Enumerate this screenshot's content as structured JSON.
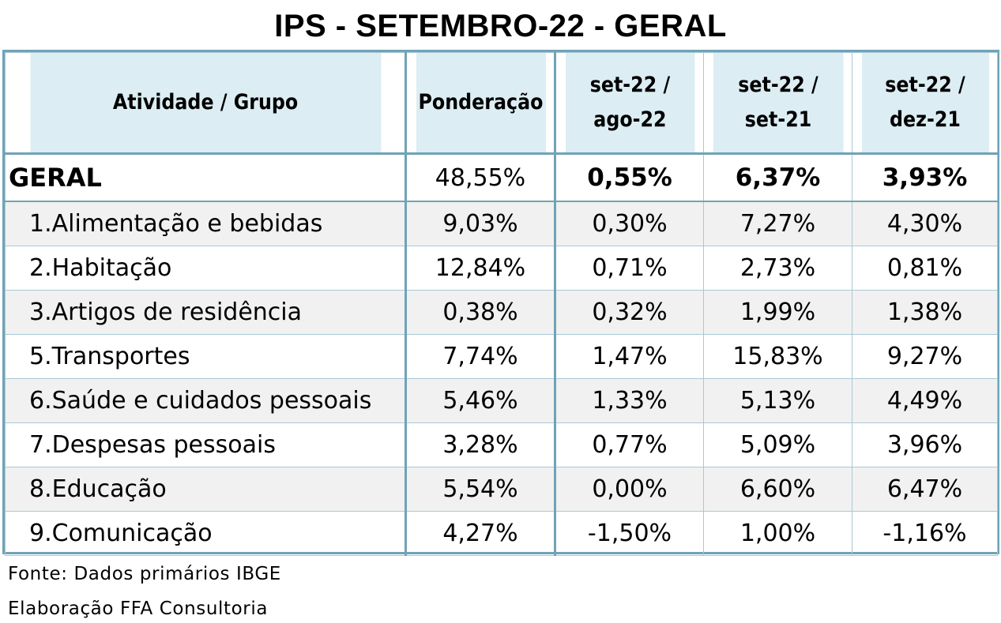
{
  "title": "IPS - SETEMBRO-22 - GERAL",
  "headers": [
    "Atividade / Grupo",
    "Ponderação",
    "set-22  /\nago-22",
    "set-22  /\nset-21",
    "set-22  /\ndez-21"
  ],
  "header_lines": [
    [
      "Atividade / Grupo"
    ],
    [
      "Ponderação"
    ],
    [
      "set-22  /",
      "ago-22"
    ],
    [
      "set-22  /",
      "set-21"
    ],
    [
      "set-22  /",
      "dez-21"
    ]
  ],
  "chart_data": {
    "type": "table",
    "title": "IPS - SETEMBRO-22 - GERAL",
    "columns": [
      "Atividade / Grupo",
      "Ponderação",
      "set-22 / ago-22",
      "set-22 / set-21",
      "set-22 / dez-21"
    ],
    "rows": [
      [
        "GERAL",
        "48,55%",
        "0,55%",
        "6,37%",
        "3,93%"
      ],
      [
        "1.Alimentação e bebidas",
        "9,03%",
        "0,30%",
        "7,27%",
        "4,30%"
      ],
      [
        "2.Habitação",
        "12,84%",
        "0,71%",
        "2,73%",
        "0,81%"
      ],
      [
        "3.Artigos de residência",
        "0,38%",
        "0,32%",
        "1,99%",
        "1,38%"
      ],
      [
        "5.Transportes",
        "7,74%",
        "1,47%",
        "15,83%",
        "9,27%"
      ],
      [
        "6.Saúde e cuidados pessoais",
        "5,46%",
        "1,33%",
        "5,13%",
        "4,49%"
      ],
      [
        "7.Despesas pessoais",
        "3,28%",
        "0,77%",
        "5,09%",
        "3,96%"
      ],
      [
        "8.Educação",
        "5,54%",
        "0,00%",
        "6,60%",
        "6,47%"
      ],
      [
        "9.Comunicação",
        "4,27%",
        "-1,50%",
        "1,00%",
        "-1,16%"
      ]
    ]
  },
  "colors": {
    "border": "#6fa3b7",
    "header_bg": "#dcedf3",
    "stripe_bg": "#f1f1f1"
  },
  "footer": {
    "source": "Fonte: Dados primários IBGE",
    "credit": "Elaboração FFA Consultoria"
  }
}
